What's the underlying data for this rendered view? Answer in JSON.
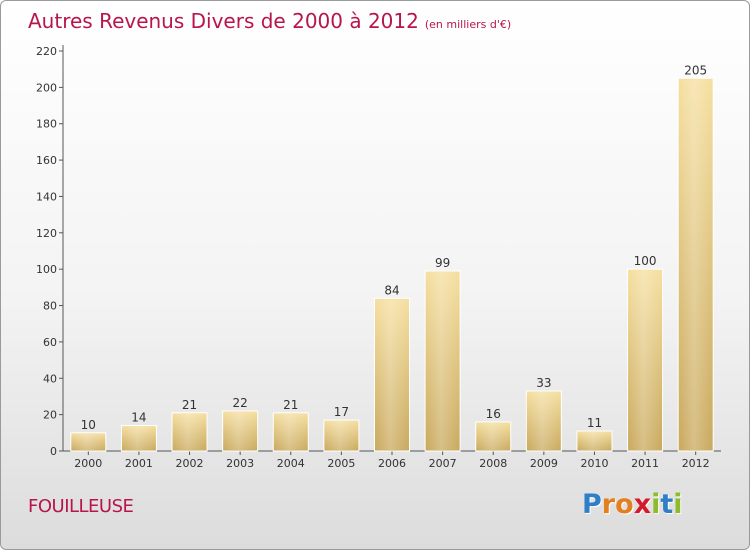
{
  "header": {
    "title": "Autres Revenus Divers de 2000 à 2012",
    "subtitle": "(en milliers d'€)"
  },
  "footer": {
    "place": "FOUILLEUSE",
    "logo_letters": [
      {
        "ch": "P",
        "color": "#2f7fc6"
      },
      {
        "ch": "r",
        "color": "#e57e1e"
      },
      {
        "ch": "o",
        "color": "#e57e1e"
      },
      {
        "ch": "x",
        "color": "#d6182c"
      },
      {
        "ch": "i",
        "color": "#8dbb2c"
      },
      {
        "ch": "t",
        "color": "#2f7fc6"
      },
      {
        "ch": "i",
        "color": "#8dbb2c"
      }
    ]
  },
  "chart_data": {
    "type": "bar",
    "categories": [
      "2000",
      "2001",
      "2002",
      "2003",
      "2004",
      "2005",
      "2006",
      "2007",
      "2008",
      "2009",
      "2010",
      "2011",
      "2012"
    ],
    "values": [
      10,
      14,
      21,
      22,
      21,
      17,
      84,
      99,
      16,
      33,
      11,
      100,
      205
    ],
    "value_labels": [
      "10",
      "14",
      "21",
      "22",
      "21",
      "17",
      "84",
      "99",
      "16",
      "33",
      "11",
      "100",
      "205"
    ],
    "ylim": [
      0,
      220
    ],
    "yticks": [
      0,
      20,
      40,
      60,
      80,
      100,
      120,
      140,
      160,
      180,
      200,
      220
    ],
    "ytick_labels": [
      "0",
      "20",
      "40",
      "60",
      "80",
      "100",
      "120",
      "140",
      "160",
      "180",
      "200",
      "220"
    ],
    "grid": false,
    "bar_color": "#e3c77f"
  }
}
